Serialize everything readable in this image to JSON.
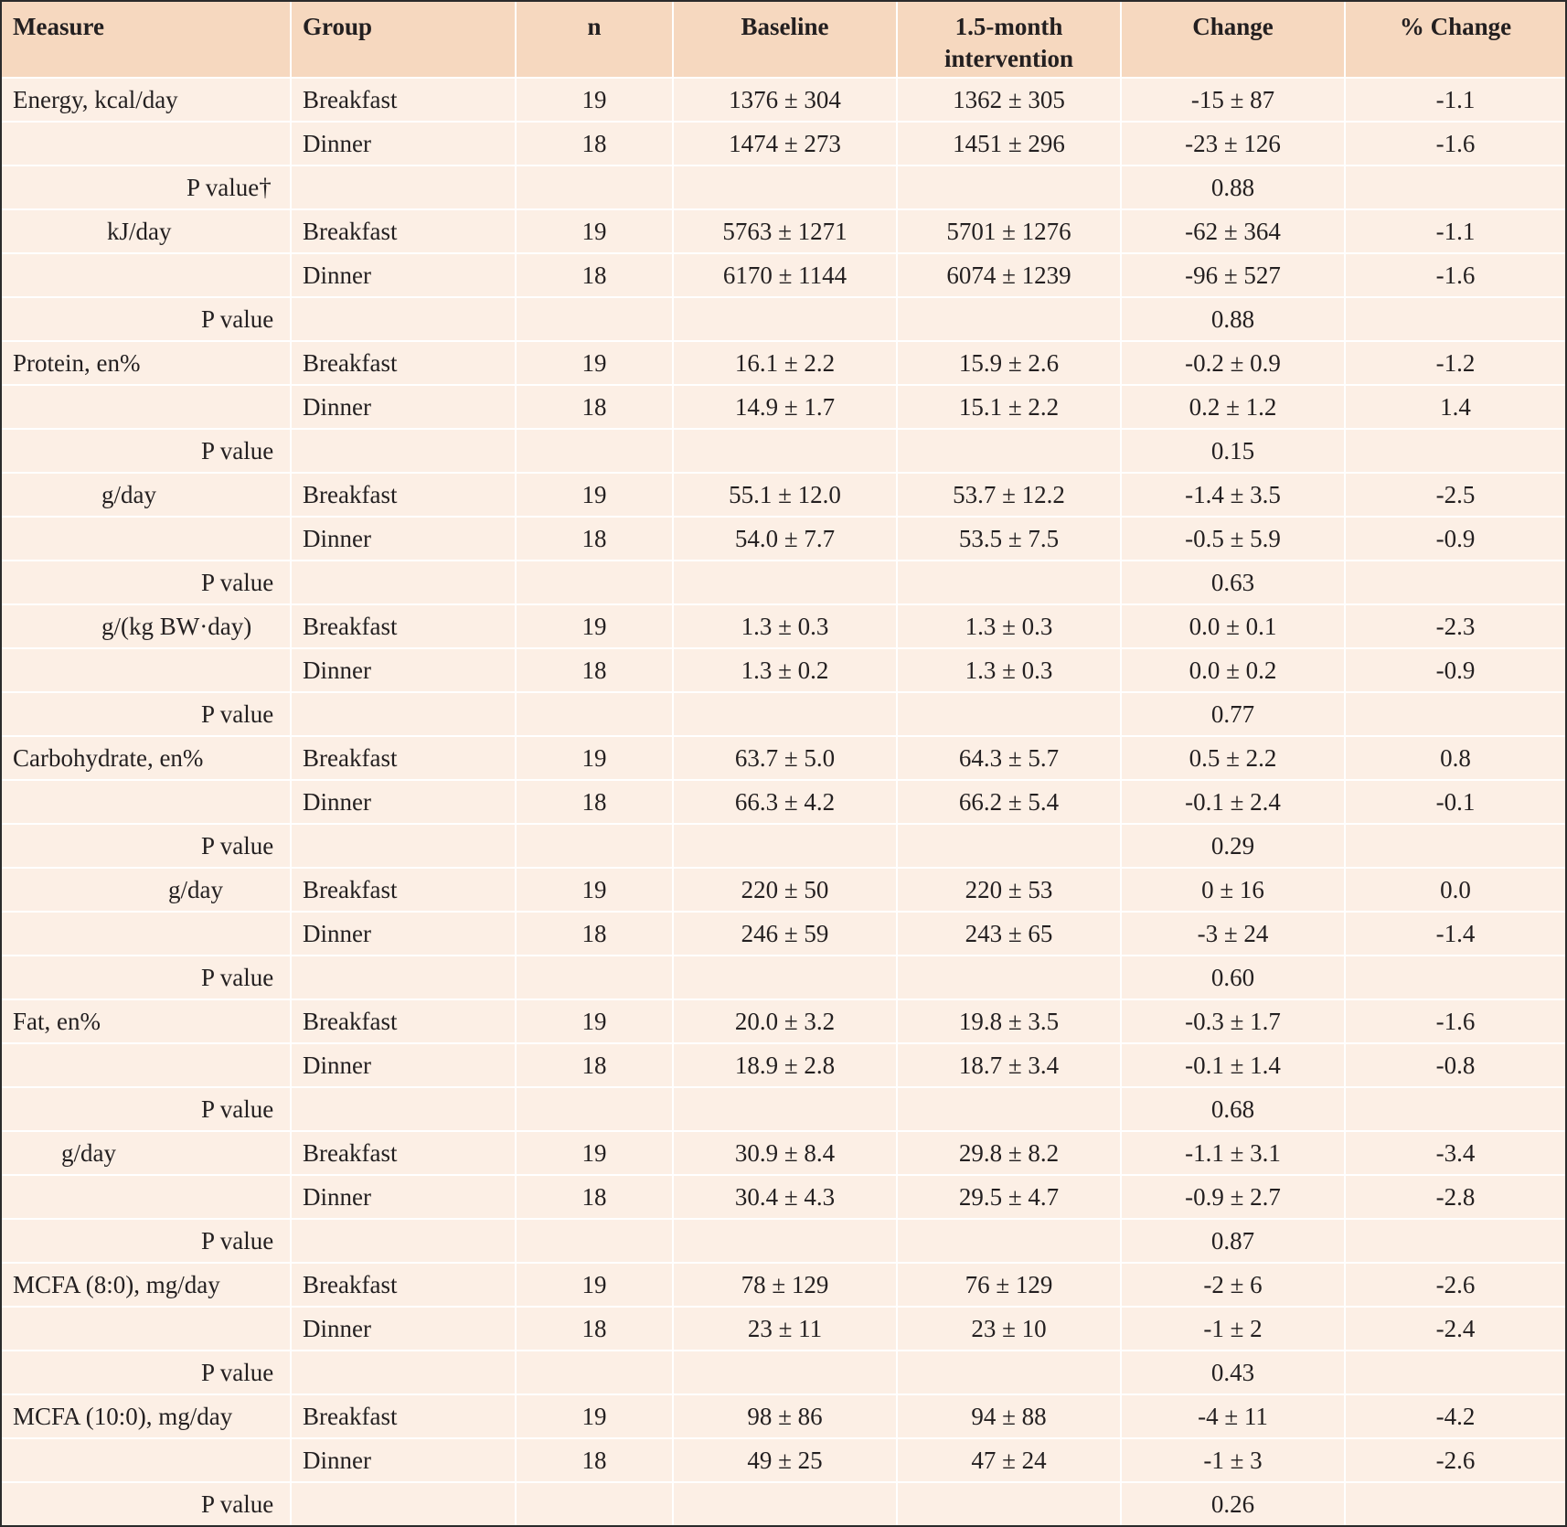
{
  "header": {
    "measure": "Measure",
    "group": "Group",
    "n": "n",
    "baseline": "Baseline",
    "intervention_line1": "1.5-month",
    "intervention_line2": "intervention",
    "change": "Change",
    "pct_change": "% Change"
  },
  "rows": [
    {
      "measure": "Energy, kcal/day",
      "indent": 0,
      "group": "Breakfast",
      "n": "19",
      "baseline": "1376 ± 304",
      "intervention": "1362 ± 305",
      "change": "-15 ± 87",
      "pct": "-1.1"
    },
    {
      "measure": "",
      "indent": 0,
      "group": "Dinner",
      "n": "18",
      "baseline": "1474 ± 273",
      "intervention": "1451 ± 296",
      "change": "-23 ± 126",
      "pct": "-1.6"
    },
    {
      "measure": "P value†",
      "indent": 190,
      "group": "",
      "n": "",
      "baseline": "",
      "intervention": "",
      "change": "0.88",
      "pct": ""
    },
    {
      "measure": "kJ/day",
      "indent": 103,
      "group": "Breakfast",
      "n": "19",
      "baseline": "5763 ± 1271",
      "intervention": "5701 ± 1276",
      "change": "-62 ± 364",
      "pct": "-1.1"
    },
    {
      "measure": "",
      "indent": 0,
      "group": "Dinner",
      "n": "18",
      "baseline": "6170 ± 1144",
      "intervention": "6074 ± 1239",
      "change": "-96 ± 527",
      "pct": "-1.6"
    },
    {
      "measure": "P value",
      "indent": 206,
      "group": "",
      "n": "",
      "baseline": "",
      "intervention": "",
      "change": "0.88",
      "pct": ""
    },
    {
      "measure": "Protein, en%",
      "indent": 0,
      "group": "Breakfast",
      "n": "19",
      "baseline": "16.1 ± 2.2",
      "intervention": "15.9 ± 2.6",
      "change": "-0.2 ± 0.9",
      "pct": "-1.2"
    },
    {
      "measure": "",
      "indent": 0,
      "group": "Dinner",
      "n": "18",
      "baseline": "14.9 ± 1.7",
      "intervention": "15.1 ± 2.2",
      "change": "0.2 ± 1.2",
      "pct": "1.4"
    },
    {
      "measure": "P value",
      "indent": 206,
      "group": "",
      "n": "",
      "baseline": "",
      "intervention": "",
      "change": "0.15",
      "pct": ""
    },
    {
      "measure": "g/day",
      "indent": 97,
      "group": "Breakfast",
      "n": "19",
      "baseline": "55.1 ± 12.0",
      "intervention": "53.7 ± 12.2",
      "change": "-1.4 ± 3.5",
      "pct": "-2.5"
    },
    {
      "measure": "",
      "indent": 0,
      "group": "Dinner",
      "n": "18",
      "baseline": "54.0 ± 7.7",
      "intervention": "53.5 ± 7.5",
      "change": "-0.5 ± 5.9",
      "pct": "-0.9"
    },
    {
      "measure": "P value",
      "indent": 206,
      "group": "",
      "n": "",
      "baseline": "",
      "intervention": "",
      "change": "0.63",
      "pct": ""
    },
    {
      "measure": "g/(kg BW·day)",
      "indent": 97,
      "group": "Breakfast",
      "n": "19",
      "baseline": "1.3 ± 0.3",
      "intervention": "1.3 ± 0.3",
      "change": "0.0 ± 0.1",
      "pct": "-2.3"
    },
    {
      "measure": "",
      "indent": 0,
      "group": "Dinner",
      "n": "18",
      "baseline": "1.3 ± 0.2",
      "intervention": "1.3 ± 0.3",
      "change": "0.0 ± 0.2",
      "pct": "-0.9"
    },
    {
      "measure": "P value",
      "indent": 206,
      "group": "",
      "n": "",
      "baseline": "",
      "intervention": "",
      "change": "0.77",
      "pct": ""
    },
    {
      "measure": "Carbohydrate, en%",
      "indent": 0,
      "group": "Breakfast",
      "n": "19",
      "baseline": "63.7 ± 5.0",
      "intervention": "64.3 ± 5.7",
      "change": "0.5 ± 2.2",
      "pct": "0.8"
    },
    {
      "measure": "",
      "indent": 0,
      "group": "Dinner",
      "n": "18",
      "baseline": "66.3 ± 4.2",
      "intervention": "66.2 ± 5.4",
      "change": "-0.1 ± 2.4",
      "pct": "-0.1"
    },
    {
      "measure": "P value",
      "indent": 206,
      "group": "",
      "n": "",
      "baseline": "",
      "intervention": "",
      "change": "0.29",
      "pct": ""
    },
    {
      "measure": "g/day",
      "indent": 170,
      "group": "Breakfast",
      "n": "19",
      "baseline": "220 ± 50",
      "intervention": "220 ± 53",
      "change": "0 ± 16",
      "pct": "0.0"
    },
    {
      "measure": "",
      "indent": 0,
      "group": "Dinner",
      "n": "18",
      "baseline": "246 ± 59",
      "intervention": "243 ± 65",
      "change": "-3 ± 24",
      "pct": "-1.4"
    },
    {
      "measure": "P value",
      "indent": 206,
      "group": "",
      "n": "",
      "baseline": "",
      "intervention": "",
      "change": "0.60",
      "pct": ""
    },
    {
      "measure": "Fat, en%",
      "indent": 0,
      "group": "Breakfast",
      "n": "19",
      "baseline": "20.0 ± 3.2",
      "intervention": "19.8 ± 3.5",
      "change": "-0.3 ± 1.7",
      "pct": "-1.6"
    },
    {
      "measure": "",
      "indent": 0,
      "group": "Dinner",
      "n": "18",
      "baseline": "18.9 ± 2.8",
      "intervention": "18.7 ± 3.4",
      "change": "-0.1 ± 1.4",
      "pct": "-0.8"
    },
    {
      "measure": "P value",
      "indent": 206,
      "group": "",
      "n": "",
      "baseline": "",
      "intervention": "",
      "change": "0.68",
      "pct": ""
    },
    {
      "measure": "g/day",
      "indent": 53,
      "group": "Breakfast",
      "n": "19",
      "baseline": "30.9 ± 8.4",
      "intervention": "29.8 ± 8.2",
      "change": "-1.1 ± 3.1",
      "pct": "-3.4"
    },
    {
      "measure": "",
      "indent": 0,
      "group": "Dinner",
      "n": "18",
      "baseline": "30.4 ± 4.3",
      "intervention": "29.5 ± 4.7",
      "change": "-0.9 ± 2.7",
      "pct": "-2.8"
    },
    {
      "measure": "P value",
      "indent": 206,
      "group": "",
      "n": "",
      "baseline": "",
      "intervention": "",
      "change": "0.87",
      "pct": ""
    },
    {
      "measure": "MCFA (8:0), mg/day",
      "indent": 0,
      "group": "Breakfast",
      "n": "19",
      "baseline": "78 ± 129",
      "intervention": "76 ± 129",
      "change": "-2 ± 6",
      "pct": "-2.6"
    },
    {
      "measure": "",
      "indent": 0,
      "group": "Dinner",
      "n": "18",
      "baseline": "23 ± 11",
      "intervention": "23 ± 10",
      "change": "-1 ± 2",
      "pct": "-2.4"
    },
    {
      "measure": "P value",
      "indent": 206,
      "group": "",
      "n": "",
      "baseline": "",
      "intervention": "",
      "change": "0.43",
      "pct": ""
    },
    {
      "measure": "MCFA (10:0), mg/day",
      "indent": 0,
      "group": "Breakfast",
      "n": "19",
      "baseline": "98 ± 86",
      "intervention": "94 ± 88",
      "change": "-4 ± 11",
      "pct": "-4.2"
    },
    {
      "measure": "",
      "indent": 0,
      "group": "Dinner",
      "n": "18",
      "baseline": "49 ± 25",
      "intervention": "47 ± 24",
      "change": "-1 ± 3",
      "pct": "-2.6"
    },
    {
      "measure": "P value",
      "indent": 206,
      "group": "",
      "n": "",
      "baseline": "",
      "intervention": "",
      "change": "0.26",
      "pct": ""
    }
  ]
}
